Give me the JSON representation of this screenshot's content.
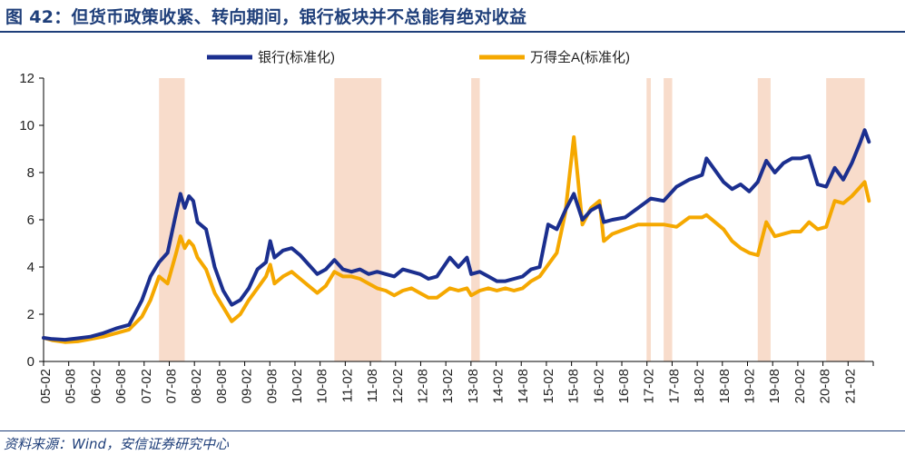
{
  "title": "图 42：但货币政策收紧、转向期间，银行板块并不总能有绝对收益",
  "source": "资料来源：Wind，安信证券研究中心",
  "colors": {
    "bank": "#1b2f8f",
    "market": "#f5a800",
    "shade": "#f8dccb",
    "header": "#1f3f7a"
  },
  "chart_data": {
    "type": "line",
    "title": "图 42：但货币政策收紧、转向期间，银行板块并不总能有绝对收益",
    "xlabel": "",
    "ylabel": "",
    "ylim": [
      0,
      12
    ],
    "yticks": [
      0,
      2,
      4,
      6,
      8,
      10,
      12
    ],
    "grid": false,
    "legend": "top-center",
    "xticks": [
      "05-02",
      "05-08",
      "06-02",
      "06-08",
      "07-02",
      "07-08",
      "08-02",
      "08-08",
      "09-02",
      "09-08",
      "10-02",
      "10-08",
      "11-02",
      "11-08",
      "12-02",
      "12-08",
      "13-02",
      "13-08",
      "14-02",
      "14-08",
      "15-02",
      "15-08",
      "16-02",
      "16-08",
      "17-02",
      "17-08",
      "18-02",
      "18-08",
      "19-02",
      "19-08",
      "20-02",
      "20-08",
      "21-02"
    ],
    "shaded_periods": [
      [
        "2007-05",
        "2007-11"
      ],
      [
        "2010-10",
        "2011-09"
      ],
      [
        "2013-06",
        "2013-08"
      ],
      [
        "2016-11",
        "2016-12"
      ],
      [
        "2017-03",
        "2017-05"
      ],
      [
        "2019-01",
        "2019-04"
      ],
      [
        "2020-05",
        "2021-02"
      ]
    ],
    "series": [
      {
        "name": "银行(标准化)",
        "color": "#1b2f8f",
        "points": [
          [
            "2005-01",
            1.0
          ],
          [
            "2005-04",
            0.95
          ],
          [
            "2005-07",
            0.92
          ],
          [
            "2005-10",
            0.98
          ],
          [
            "2006-01",
            1.05
          ],
          [
            "2006-04",
            1.2
          ],
          [
            "2006-07",
            1.4
          ],
          [
            "2006-10",
            1.55
          ],
          [
            "2007-01",
            2.6
          ],
          [
            "2007-03",
            3.6
          ],
          [
            "2007-05",
            4.2
          ],
          [
            "2007-07",
            4.6
          ],
          [
            "2007-09",
            6.3
          ],
          [
            "2007-10",
            7.1
          ],
          [
            "2007-11",
            6.5
          ],
          [
            "2007-12",
            7.0
          ],
          [
            "2008-01",
            6.8
          ],
          [
            "2008-02",
            5.9
          ],
          [
            "2008-04",
            5.6
          ],
          [
            "2008-06",
            4.0
          ],
          [
            "2008-08",
            3.0
          ],
          [
            "2008-10",
            2.4
          ],
          [
            "2008-12",
            2.6
          ],
          [
            "2009-02",
            3.1
          ],
          [
            "2009-04",
            3.9
          ],
          [
            "2009-06",
            4.2
          ],
          [
            "2009-07",
            5.1
          ],
          [
            "2009-08",
            4.4
          ],
          [
            "2009-10",
            4.7
          ],
          [
            "2009-12",
            4.8
          ],
          [
            "2010-02",
            4.5
          ],
          [
            "2010-04",
            4.1
          ],
          [
            "2010-06",
            3.7
          ],
          [
            "2010-08",
            3.9
          ],
          [
            "2010-10",
            4.3
          ],
          [
            "2010-12",
            3.9
          ],
          [
            "2011-02",
            3.8
          ],
          [
            "2011-04",
            3.9
          ],
          [
            "2011-06",
            3.7
          ],
          [
            "2011-08",
            3.8
          ],
          [
            "2011-10",
            3.7
          ],
          [
            "2011-12",
            3.6
          ],
          [
            "2012-02",
            3.9
          ],
          [
            "2012-04",
            3.8
          ],
          [
            "2012-06",
            3.7
          ],
          [
            "2012-08",
            3.5
          ],
          [
            "2012-10",
            3.6
          ],
          [
            "2013-01",
            4.4
          ],
          [
            "2013-03",
            4.0
          ],
          [
            "2013-05",
            4.4
          ],
          [
            "2013-06",
            3.7
          ],
          [
            "2013-08",
            3.8
          ],
          [
            "2013-10",
            3.6
          ],
          [
            "2013-12",
            3.4
          ],
          [
            "2014-02",
            3.4
          ],
          [
            "2014-04",
            3.5
          ],
          [
            "2014-06",
            3.6
          ],
          [
            "2014-08",
            3.9
          ],
          [
            "2014-10",
            4.0
          ],
          [
            "2014-12",
            5.8
          ],
          [
            "2015-02",
            5.6
          ],
          [
            "2015-04",
            6.4
          ],
          [
            "2015-06",
            7.1
          ],
          [
            "2015-08",
            6.0
          ],
          [
            "2015-10",
            6.4
          ],
          [
            "2015-12",
            6.6
          ],
          [
            "2016-01",
            5.9
          ],
          [
            "2016-03",
            6.0
          ],
          [
            "2016-06",
            6.1
          ],
          [
            "2016-09",
            6.5
          ],
          [
            "2016-12",
            6.9
          ],
          [
            "2017-03",
            6.8
          ],
          [
            "2017-06",
            7.4
          ],
          [
            "2017-09",
            7.7
          ],
          [
            "2017-12",
            7.9
          ],
          [
            "2018-01",
            8.6
          ],
          [
            "2018-03",
            8.1
          ],
          [
            "2018-05",
            7.6
          ],
          [
            "2018-07",
            7.3
          ],
          [
            "2018-09",
            7.5
          ],
          [
            "2018-11",
            7.2
          ],
          [
            "2019-01",
            7.6
          ],
          [
            "2019-03",
            8.5
          ],
          [
            "2019-05",
            8.0
          ],
          [
            "2019-07",
            8.4
          ],
          [
            "2019-09",
            8.6
          ],
          [
            "2019-11",
            8.6
          ],
          [
            "2020-01",
            8.7
          ],
          [
            "2020-03",
            7.5
          ],
          [
            "2020-05",
            7.4
          ],
          [
            "2020-07",
            8.2
          ],
          [
            "2020-09",
            7.7
          ],
          [
            "2020-11",
            8.4
          ],
          [
            "2021-01",
            9.3
          ],
          [
            "2021-02",
            9.8
          ],
          [
            "2021-03",
            9.3
          ]
        ]
      },
      {
        "name": "万得全A(标准化)",
        "color": "#f5a800",
        "points": [
          [
            "2005-01",
            1.0
          ],
          [
            "2005-04",
            0.9
          ],
          [
            "2005-07",
            0.82
          ],
          [
            "2005-10",
            0.85
          ],
          [
            "2006-01",
            0.95
          ],
          [
            "2006-04",
            1.05
          ],
          [
            "2006-07",
            1.2
          ],
          [
            "2006-10",
            1.35
          ],
          [
            "2007-01",
            1.9
          ],
          [
            "2007-03",
            2.6
          ],
          [
            "2007-05",
            3.6
          ],
          [
            "2007-07",
            3.3
          ],
          [
            "2007-09",
            4.6
          ],
          [
            "2007-10",
            5.3
          ],
          [
            "2007-11",
            4.8
          ],
          [
            "2007-12",
            5.1
          ],
          [
            "2008-01",
            4.9
          ],
          [
            "2008-02",
            4.4
          ],
          [
            "2008-04",
            3.9
          ],
          [
            "2008-06",
            2.9
          ],
          [
            "2008-08",
            2.3
          ],
          [
            "2008-10",
            1.7
          ],
          [
            "2008-12",
            2.0
          ],
          [
            "2009-02",
            2.6
          ],
          [
            "2009-04",
            3.1
          ],
          [
            "2009-06",
            3.6
          ],
          [
            "2009-07",
            4.1
          ],
          [
            "2009-08",
            3.3
          ],
          [
            "2009-10",
            3.6
          ],
          [
            "2009-12",
            3.8
          ],
          [
            "2010-02",
            3.5
          ],
          [
            "2010-04",
            3.2
          ],
          [
            "2010-06",
            2.9
          ],
          [
            "2010-08",
            3.2
          ],
          [
            "2010-10",
            3.8
          ],
          [
            "2010-12",
            3.6
          ],
          [
            "2011-02",
            3.6
          ],
          [
            "2011-04",
            3.5
          ],
          [
            "2011-06",
            3.3
          ],
          [
            "2011-08",
            3.1
          ],
          [
            "2011-10",
            3.0
          ],
          [
            "2011-12",
            2.8
          ],
          [
            "2012-02",
            3.0
          ],
          [
            "2012-04",
            3.1
          ],
          [
            "2012-06",
            2.9
          ],
          [
            "2012-08",
            2.7
          ],
          [
            "2012-10",
            2.7
          ],
          [
            "2013-01",
            3.1
          ],
          [
            "2013-03",
            3.0
          ],
          [
            "2013-05",
            3.1
          ],
          [
            "2013-06",
            2.8
          ],
          [
            "2013-08",
            3.0
          ],
          [
            "2013-10",
            3.1
          ],
          [
            "2013-12",
            3.0
          ],
          [
            "2014-02",
            3.1
          ],
          [
            "2014-04",
            3.0
          ],
          [
            "2014-06",
            3.1
          ],
          [
            "2014-08",
            3.4
          ],
          [
            "2014-10",
            3.6
          ],
          [
            "2014-12",
            4.1
          ],
          [
            "2015-02",
            4.6
          ],
          [
            "2015-04",
            6.3
          ],
          [
            "2015-06",
            9.5
          ],
          [
            "2015-08",
            5.8
          ],
          [
            "2015-10",
            6.5
          ],
          [
            "2015-12",
            6.8
          ],
          [
            "2016-01",
            5.1
          ],
          [
            "2016-03",
            5.4
          ],
          [
            "2016-06",
            5.6
          ],
          [
            "2016-09",
            5.8
          ],
          [
            "2016-12",
            5.8
          ],
          [
            "2017-03",
            5.8
          ],
          [
            "2017-06",
            5.7
          ],
          [
            "2017-09",
            6.1
          ],
          [
            "2017-12",
            6.1
          ],
          [
            "2018-01",
            6.2
          ],
          [
            "2018-03",
            5.9
          ],
          [
            "2018-05",
            5.6
          ],
          [
            "2018-07",
            5.1
          ],
          [
            "2018-09",
            4.8
          ],
          [
            "2018-11",
            4.6
          ],
          [
            "2019-01",
            4.5
          ],
          [
            "2019-03",
            5.9
          ],
          [
            "2019-05",
            5.3
          ],
          [
            "2019-07",
            5.4
          ],
          [
            "2019-09",
            5.5
          ],
          [
            "2019-11",
            5.5
          ],
          [
            "2020-01",
            5.9
          ],
          [
            "2020-03",
            5.6
          ],
          [
            "2020-05",
            5.7
          ],
          [
            "2020-07",
            6.8
          ],
          [
            "2020-09",
            6.7
          ],
          [
            "2020-11",
            7.0
          ],
          [
            "2021-01",
            7.4
          ],
          [
            "2021-02",
            7.6
          ],
          [
            "2021-03",
            6.8
          ]
        ]
      }
    ]
  }
}
